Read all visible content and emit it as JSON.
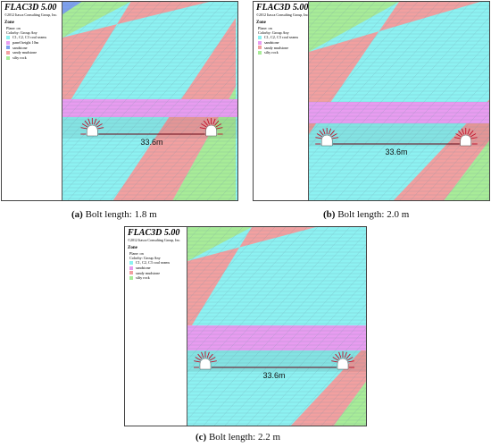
{
  "colors": {
    "cyan": "#8df2f2",
    "red": "#f2a0a0",
    "green": "#a8ec98",
    "pink": "#e89cf0",
    "blue": "#7ea0ee",
    "bolt": "#c0102a",
    "mesh": "#6d8fa0"
  },
  "panels": [
    {
      "id": "a",
      "version": "FLAC3D 5.00",
      "copyright": "©2012 Itasca Consulting Group, Inc.",
      "zone_title": "Zone",
      "plane": "Plane: on",
      "colorby": "Colorby: Group    Any",
      "legend": [
        {
          "label": "C1, C2, C3 coal seams",
          "color": "#8df2f2"
        },
        {
          "label": "panel height 10m",
          "color": "#e89cf0"
        },
        {
          "label": "sandstone",
          "color": "#7ea0ee"
        },
        {
          "label": "sandy mudstone",
          "color": "#f2a0a0"
        },
        {
          "label": "silty rock",
          "color": "#a8ec98"
        }
      ],
      "span": "33.6m",
      "caption_label": "(a)",
      "caption_text": " Bolt length: 1.8 m"
    },
    {
      "id": "b",
      "version": "FLAC3D 5.00",
      "copyright": "©2012 Itasca Consulting Group, Inc.",
      "zone_title": "Zone",
      "plane": "Plane: on",
      "colorby": "Colorby: Group    Any",
      "legend": [
        {
          "label": "C1, C2, C3 coal seams",
          "color": "#8df2f2"
        },
        {
          "label": "sandstone",
          "color": "#e89cf0"
        },
        {
          "label": "sandy mudstone",
          "color": "#f2a0a0"
        },
        {
          "label": "silty rock",
          "color": "#a8ec98"
        }
      ],
      "span": "33.6m",
      "caption_label": "(b)",
      "caption_text": " Bolt length: 2.0 m"
    },
    {
      "id": "c",
      "version": "FLAC3D 5.00",
      "copyright": "©2012 Itasca Consulting Group, Inc.",
      "zone_title": "Zone",
      "plane": "Plane: on",
      "colorby": "Colorby: Group    Any",
      "legend": [
        {
          "label": "C1, C2, C3 coal seams",
          "color": "#8df2f2"
        },
        {
          "label": "sandstone",
          "color": "#e89cf0"
        },
        {
          "label": "sandy mudstone",
          "color": "#f2a0a0"
        },
        {
          "label": "silty rock",
          "color": "#a8ec98"
        }
      ],
      "span": "33.6m",
      "caption_label": "(c)",
      "caption_text": " Bolt length: 2.2 m"
    }
  ]
}
